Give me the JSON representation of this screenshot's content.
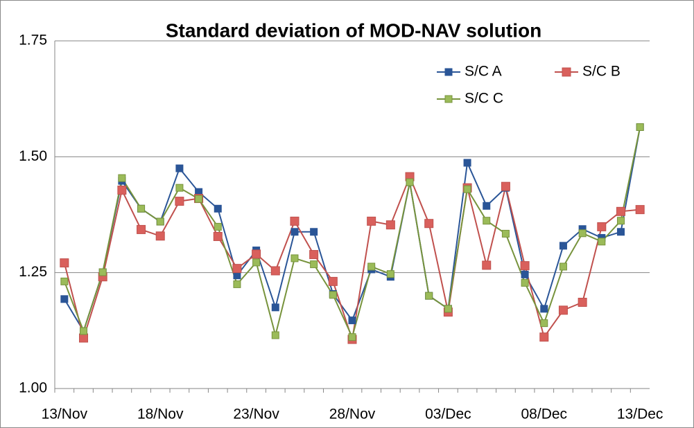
{
  "chart_data": {
    "type": "line",
    "title": "Standard deviation of MOD-NAV solution",
    "categories": [
      "13/Nov",
      null,
      null,
      null,
      null,
      "18/Nov",
      null,
      null,
      null,
      null,
      "23/Nov",
      null,
      null,
      null,
      null,
      "28/Nov",
      null,
      null,
      null,
      null,
      "03/Dec",
      null,
      null,
      null,
      null,
      "08/Dec",
      null,
      null,
      null,
      null,
      "13/Dec"
    ],
    "series": [
      {
        "name": "S/C A",
        "color": "#2a5597",
        "values": [
          1.193,
          1.124,
          1.251,
          1.448,
          1.388,
          1.36,
          1.475,
          1.424,
          1.388,
          1.244,
          1.298,
          1.175,
          1.338,
          1.338,
          1.204,
          1.147,
          1.257,
          1.241,
          1.445,
          1.2,
          1.172,
          1.487,
          1.394,
          1.433,
          1.246,
          1.172,
          1.308,
          1.344,
          1.325,
          1.338,
          1.564
        ]
      },
      {
        "name": "S/C B",
        "color": "#c0504d",
        "values": [
          1.271,
          1.109,
          1.241,
          1.428,
          1.343,
          1.329,
          1.404,
          1.41,
          1.328,
          1.259,
          1.29,
          1.254,
          1.361,
          1.289,
          1.231,
          1.106,
          1.361,
          1.353,
          1.457,
          1.356,
          1.165,
          1.433,
          1.266,
          1.436,
          1.265,
          1.111,
          1.169,
          1.186,
          1.349,
          1.382,
          1.386
        ]
      },
      {
        "name": "S/C C",
        "color": "#77933c",
        "values": [
          1.231,
          1.124,
          1.251,
          1.454,
          1.388,
          1.36,
          1.433,
          1.409,
          1.349,
          1.225,
          1.272,
          1.115,
          1.281,
          1.268,
          1.202,
          1.111,
          1.263,
          1.247,
          1.445,
          1.2,
          1.172,
          1.43,
          1.362,
          1.334,
          1.228,
          1.141,
          1.263,
          1.335,
          1.317,
          1.362,
          1.564
        ]
      }
    ],
    "ylim": [
      1,
      1.75
    ],
    "yticks": [
      {
        "value": 1,
        "label": "1.00"
      },
      {
        "value": 1.25,
        "label": "1.25"
      },
      {
        "value": 1.5,
        "label": "1.50"
      },
      {
        "value": 1.75,
        "label": "1.75"
      }
    ],
    "grid": true
  }
}
